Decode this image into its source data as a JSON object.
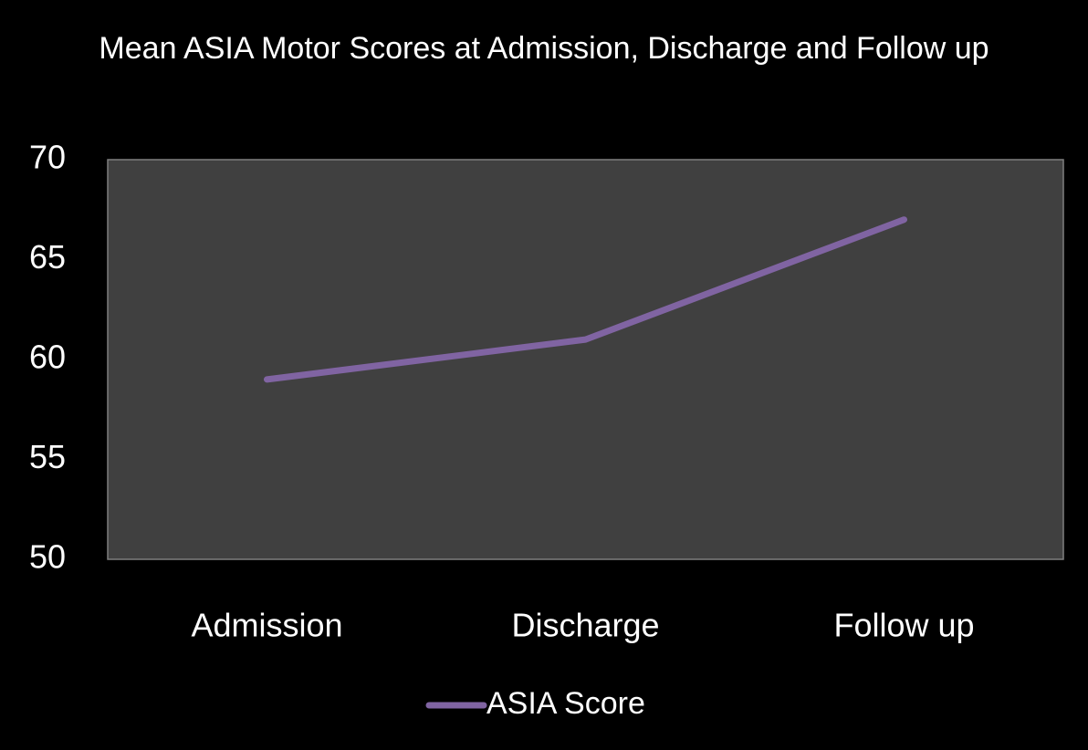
{
  "chart_data": {
    "type": "line",
    "title": "Mean ASIA Motor Scores at Admission, Discharge and Follow up",
    "categories": [
      "Admission",
      "Discharge",
      "Follow up"
    ],
    "series": [
      {
        "name": "ASIA Score",
        "color": "#8064a2",
        "values": [
          59,
          61,
          67
        ]
      }
    ],
    "ylim": [
      50,
      70
    ],
    "yticks": [
      50,
      55,
      60,
      65,
      70
    ],
    "grid": false,
    "legend": "bottom"
  }
}
